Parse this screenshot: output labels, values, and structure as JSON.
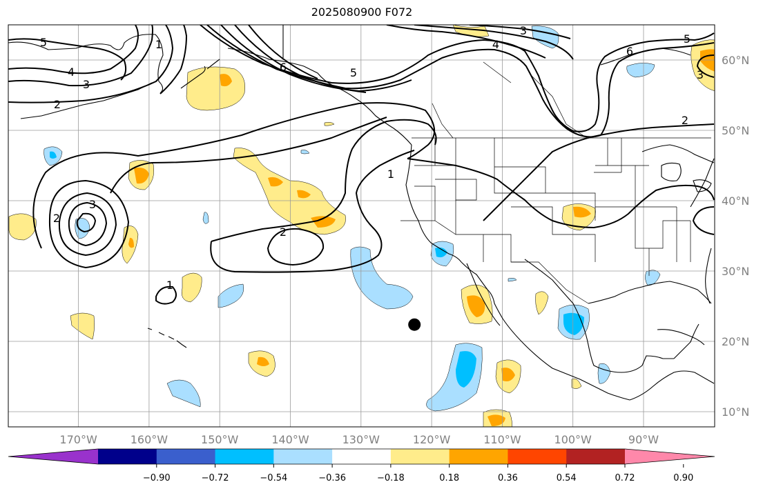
{
  "title": "2025080900 F072",
  "map": {
    "lon_range": [
      -180,
      -80
    ],
    "lat_range": [
      8,
      65
    ],
    "lat_labels": [
      "60°N",
      "50°N",
      "40°N",
      "30°N",
      "20°N",
      "10°N"
    ],
    "lon_labels": [
      "170°W",
      "160°W",
      "150°W",
      "140°W",
      "130°W",
      "120°W",
      "110°W",
      "100°W",
      "90°W"
    ],
    "contour_labels": [
      "5",
      "4",
      "3",
      "2",
      "1",
      "6",
      "5",
      "4",
      "3",
      "6",
      "5",
      "3",
      "2",
      "1",
      "2",
      "1",
      "3",
      "2"
    ],
    "marker": {
      "lon": -122.5,
      "lat": 22.5,
      "color": "#000000"
    },
    "shading_colors": {
      "neg_strong": "#00bfff",
      "neg_weak": "#aadfff",
      "pos_weak": "#ffec8b",
      "pos_strong": "#ffa500"
    }
  },
  "colorbar": {
    "ticks": [
      "−0.90",
      "−0.72",
      "−0.54",
      "−0.36",
      "−0.18",
      "0.18",
      "0.36",
      "0.54",
      "0.72",
      "0.90"
    ],
    "colors": [
      "#9932cc",
      "#00008b",
      "#3a5fcd",
      "#00bfff",
      "#aadfff",
      "#ffffff",
      "#ffec8b",
      "#ffa500",
      "#ff4500",
      "#b22222",
      "#ff88aa"
    ]
  }
}
